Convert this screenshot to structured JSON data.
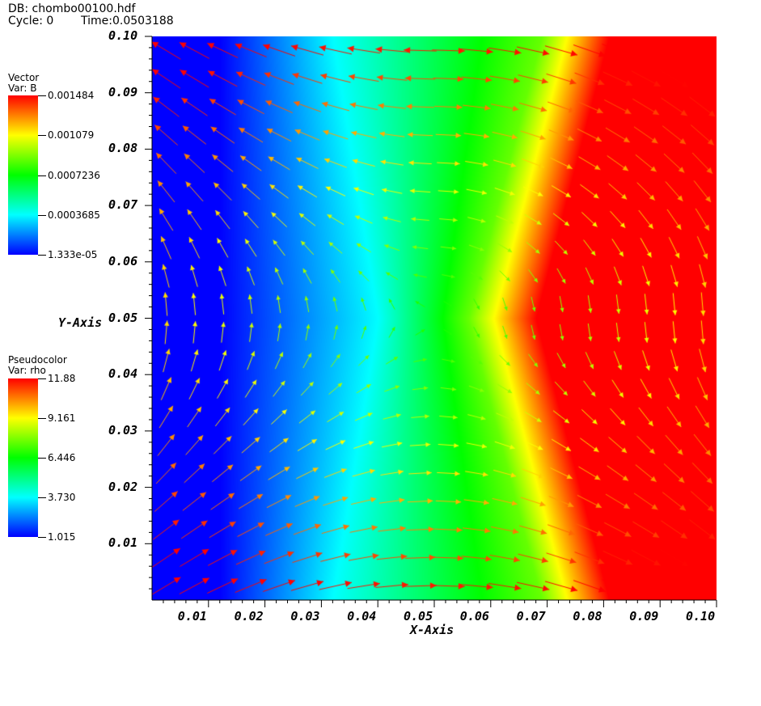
{
  "header": {
    "db": "DB: chombo00100.hdf",
    "cycle": "Cycle: 0",
    "time": "Time:0.0503188"
  },
  "chart_data": {
    "type": "heatmap",
    "xlabel": "X-Axis",
    "ylabel": "Y-Axis",
    "xlim": [
      0,
      0.1
    ],
    "ylim": [
      0,
      0.1
    ],
    "xticks": [
      "0.01",
      "0.02",
      "0.03",
      "0.04",
      "0.05",
      "0.06",
      "0.07",
      "0.08",
      "0.09",
      "0.10"
    ],
    "yticks": [
      "0.01",
      "0.02",
      "0.03",
      "0.04",
      "0.05",
      "0.06",
      "0.07",
      "0.08",
      "0.09",
      "0.10"
    ],
    "colormap": [
      "#0000ff",
      "#00ffff",
      "#00ff00",
      "#ffff00",
      "#ff0000"
    ],
    "plots": [
      {
        "kind": "vector",
        "title": "Vector",
        "var": "Var: B",
        "min": "1.333e-05",
        "max": "0.001484",
        "labels": [
          "0.001484",
          "0.001079",
          "0.0007236",
          "0.0003685",
          "1.333e-05"
        ]
      },
      {
        "kind": "pseudocolor",
        "title": "Pseudocolor",
        "var": "Var: rho",
        "min": "1.015",
        "max": "11.88",
        "labels": [
          "11.88",
          "9.161",
          "6.446",
          "3.730",
          "1.015"
        ]
      }
    ]
  }
}
